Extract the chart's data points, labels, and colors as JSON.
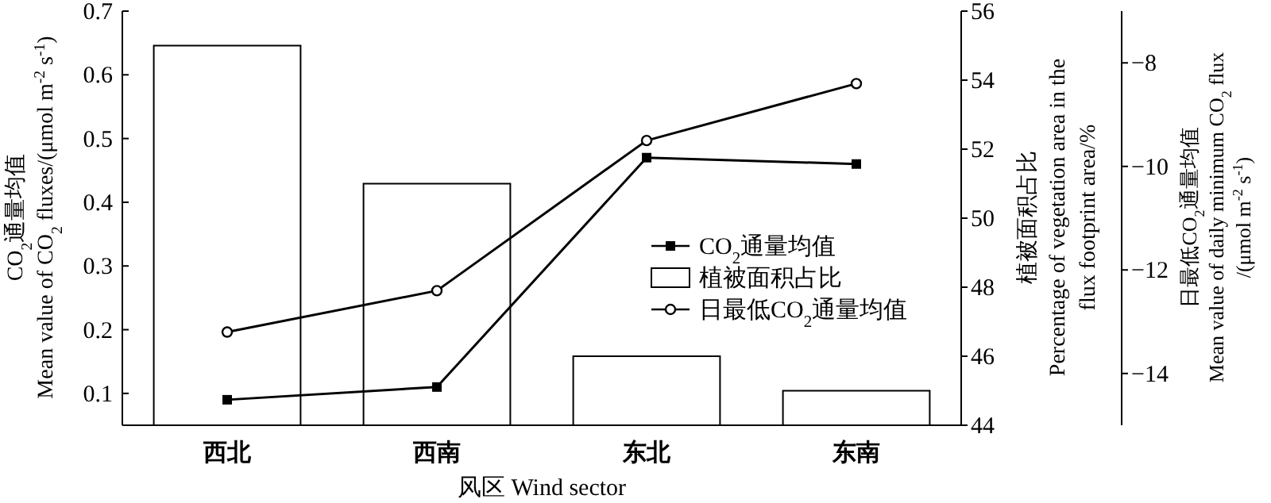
{
  "chart_data": {
    "type": "bar",
    "categories": [
      "西北",
      "西南",
      "东北",
      "东南"
    ],
    "xlabel": "风区 Wind sector",
    "ylabel": "CO$_{2}$通量均值\nMean value of CO$_{2}$ fluxes/(μmol m$^{-2}$ s$^{-1}$)",
    "y2label": "植被面积占比\nPercentage of vegetation area in the\nflux footprint area/%",
    "y3label": "日最低CO$_{2}$通量均值\nMean value of daily minimum CO$_{2}$ flux\n/(μmol m$^{-2}$ s$^{-1}$)",
    "ylim": [
      0.05,
      0.7
    ],
    "yticks": [
      0.1,
      0.2,
      0.3,
      0.4,
      0.5,
      0.6,
      0.7
    ],
    "y2lim": [
      44,
      56
    ],
    "y2ticks": [
      44,
      46,
      48,
      50,
      52,
      54,
      56
    ],
    "y3lim": [
      -15,
      -7
    ],
    "y3ticks": [
      {
        "value": -8,
        "label": "−8"
      },
      {
        "value": -10,
        "label": "−10"
      },
      {
        "value": -12,
        "label": "−12"
      },
      {
        "value": -14,
        "label": "−14"
      }
    ],
    "legend": "right",
    "grid": false,
    "series": [
      {
        "name": "CO$_{2}$通量均值",
        "type": "line",
        "axis": "y",
        "color": "#000000",
        "marker": "square",
        "values": [
          0.09,
          0.11,
          0.47,
          0.46
        ]
      },
      {
        "name": "植被面积占比",
        "type": "bar",
        "axis": "y2",
        "color": "#ffffff",
        "values": [
          55,
          51,
          46,
          45
        ]
      },
      {
        "name": "日最低CO$_{2}$通量均值",
        "type": "line",
        "axis": "y3",
        "color": "#000000",
        "marker": "circle",
        "values": [
          -13.2,
          -12.4,
          -9.5,
          -8.4
        ]
      }
    ]
  }
}
